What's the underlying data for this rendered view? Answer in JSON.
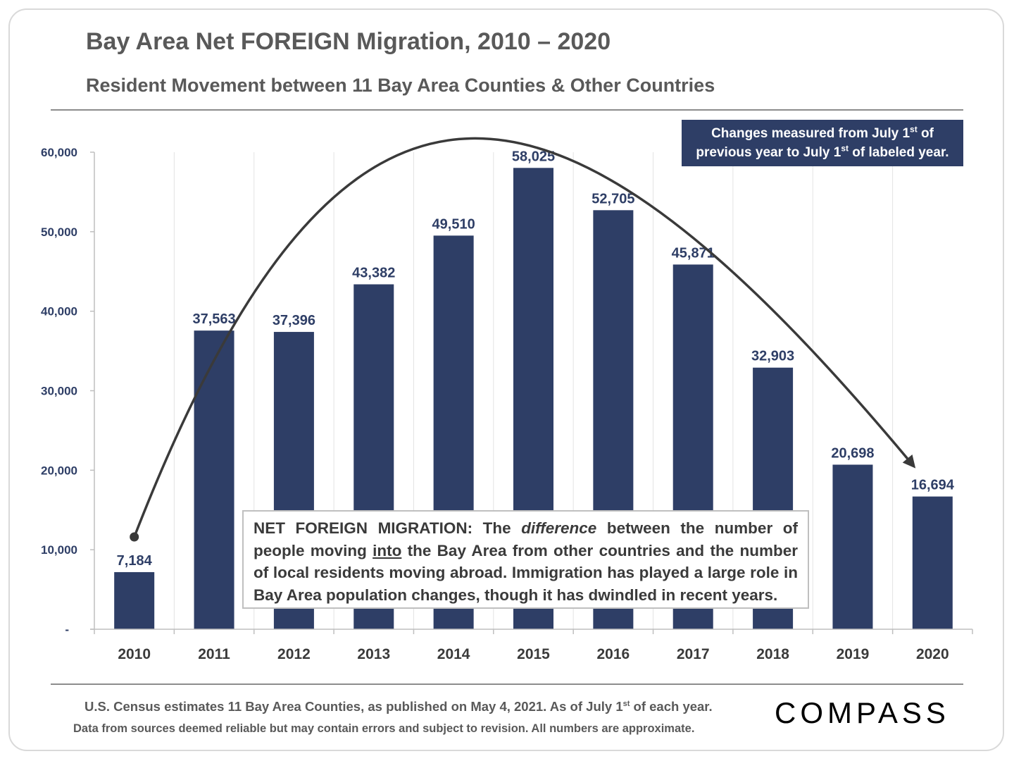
{
  "header": {
    "title": "Bay Area Net FOREIGN Migration, 2010 – 2020",
    "subtitle": "Resident Movement between 11 Bay Area Counties & Other Countries"
  },
  "note": {
    "line1_pre": "Changes measured from July 1",
    "line1_sup": "st",
    "line1_post": " of",
    "line2_pre": "previous year to July 1",
    "line2_sup": "st",
    "line2_post": " of labeled year."
  },
  "definition": {
    "term": "NET FOREIGN MIGRATION:",
    "part1": " The ",
    "emphasis": "difference",
    "part2": " between the number of people moving ",
    "underline": "into",
    "part3": " the Bay Area from other countries and the number of local residents moving abroad.  Immigration has played a large role in Bay Area population changes, though it has dwindled in recent years."
  },
  "footer": {
    "line1_pre": "U.S. Census estimates 11 Bay Area Counties, as published on May 4, 2021. As of July 1",
    "line1_sup": "st",
    "line1_post": " of each year.",
    "line2": "Data from sources deemed reliable but may contain errors and subject to revision. All numbers are approximate."
  },
  "logo": {
    "text": "COMPASS"
  },
  "colors": {
    "bar": "#2e3e66",
    "text": "#595959",
    "arrow": "#3a3a3a"
  },
  "chart_data": {
    "type": "bar",
    "title": "Bay Area Net FOREIGN Migration, 2010 – 2020",
    "categories": [
      "2010",
      "2011",
      "2012",
      "2013",
      "2014",
      "2015",
      "2016",
      "2017",
      "2018",
      "2019",
      "2020"
    ],
    "values": [
      7184,
      37563,
      37396,
      43382,
      49510,
      58025,
      52705,
      45871,
      32903,
      20698,
      16694
    ],
    "value_labels": [
      "7,184",
      "37,563",
      "37,396",
      "43,382",
      "49,510",
      "58,025",
      "52,705",
      "45,871",
      "32,903",
      "20,698",
      "16,694"
    ],
    "ylim": [
      0,
      60000
    ],
    "yticks": [
      0,
      10000,
      20000,
      30000,
      40000,
      50000,
      60000
    ],
    "ytick_labels": [
      "-",
      "10,000",
      "20,000",
      "30,000",
      "40,000",
      "50,000",
      "60,000"
    ],
    "trend_arrow": {
      "from": "2010",
      "to": "2020",
      "shape": "arc"
    },
    "xlabel": "",
    "ylabel": ""
  }
}
